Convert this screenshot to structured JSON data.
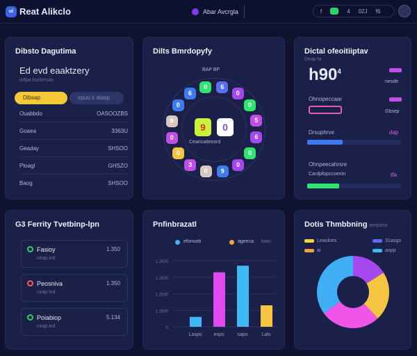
{
  "header": {
    "brand": "Reat Alikclo",
    "logo": "ui",
    "center": "Abar Avcrgla",
    "pill": [
      "f",
      "",
      "4",
      "02J",
      "f6"
    ]
  },
  "card1": {
    "title": "Dibsto Dagutima",
    "headline": "Ed evd eaaktzery",
    "sub": "inflpa ksebrrsas",
    "btn_primary": "Dibsap",
    "btn_secondary": "epuu x atasp",
    "rows": [
      {
        "label": "Ouabbdo",
        "value": "OASOOZBS"
      },
      {
        "label": "Goaea",
        "value": "3363U"
      },
      {
        "label": "Geaday",
        "value": "SHSOO"
      },
      {
        "label": "Ploagl",
        "value": "GHSZO"
      },
      {
        "label": "Baog",
        "value": "SHSOO"
      }
    ]
  },
  "card2": {
    "title": "Dilts Bmrdopyfy",
    "legend": "BAP BP",
    "center_caption": "Cearicaiteosrd",
    "center_tiles": [
      "9",
      "0"
    ],
    "tiles": [
      "0",
      "6",
      "0",
      "0",
      "5",
      "6",
      "0",
      "0",
      "9",
      "0",
      "3",
      "0",
      "0",
      "9",
      "0",
      "6"
    ]
  },
  "card3": {
    "title": "Dictal ofeoitiiptav",
    "sub": "Deap ta",
    "big": "h90",
    "sup": "4",
    "tag1": "",
    "tag2": "nesde",
    "label2": "Ohnopeccaar",
    "tag3": "",
    "tag4": "Gbsep",
    "label3": "Drsuphrve",
    "tag5": "dap",
    "label4": "Ohnpeecahrsre",
    "label5": "Cardpfopccoentn",
    "tag6": "tfa",
    "progress_blue": 0.38,
    "progress_green": 0.34,
    "colors": {
      "blue": "#3f7bf0",
      "green": "#2ee56f"
    }
  },
  "card4": {
    "title": "G3 Ferrity Tvetbinp-lpn",
    "items": [
      {
        "name": "Fasioy",
        "sub": "ceap ind",
        "value": "1.350",
        "color": "#2bd36a"
      },
      {
        "name": "Peosniva",
        "sub": "ceap ind",
        "value": "1.350",
        "color": "#ff5a5a"
      },
      {
        "name": "Poiabiop",
        "sub": "ceap ind",
        "value": "5.134",
        "color": "#2bd36a"
      }
    ]
  },
  "chart_data": [
    {
      "type": "bar",
      "title": "Pnfinbrazatl",
      "legend": [
        "efonoob",
        "ageeca",
        "bam"
      ],
      "categories": [
        "Laspo",
        "esps",
        "sapo",
        "Lalo"
      ],
      "values": [
        0.6,
        3.3,
        3.7,
        1.3
      ],
      "colors": [
        "#3fb8f5",
        "#e048f0",
        "#3fb8f5",
        "#f5c542"
      ],
      "yticks": [
        "0",
        "1 2500",
        "1 2500",
        "1 2500",
        "1 2500"
      ],
      "ylim": [
        0,
        4
      ]
    },
    {
      "type": "pie",
      "title": "Dotis Thmbbning",
      "subtitle": "eeqsims",
      "legend": [
        {
          "label": "Leaoloes",
          "color": "#f5d442"
        },
        {
          "label": "31aogs",
          "color": "#5a6ef0"
        },
        {
          "label": "ai",
          "color": "#f5a142"
        },
        {
          "label": "aopp",
          "color": "#3fb8f5"
        }
      ],
      "values": [
        16,
        22,
        27,
        35
      ],
      "colors": [
        "#a448f0",
        "#f5c542",
        "#ee55e8",
        "#3faef5"
      ]
    }
  ]
}
